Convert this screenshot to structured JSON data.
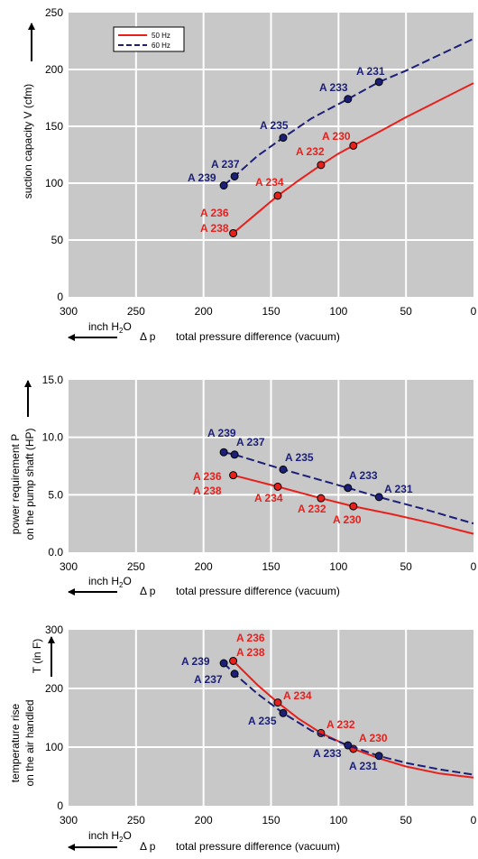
{
  "colors": {
    "plot_bg": "#c8c8c8",
    "grid": "#ffffff",
    "hz50": "#e8201c",
    "hz60": "#1b1f78"
  },
  "xaxis": {
    "ticks": [
      "300",
      "250",
      "200",
      "150",
      "100",
      "50",
      "0"
    ],
    "unit_text": "inch H",
    "unit_sub": "2",
    "unit_tail": "O",
    "delta_text": "Δ p",
    "label": "total pressure difference (vacuum)"
  },
  "chart_data": [
    {
      "type": "line",
      "ylabel_lines": [
        "suction capacity V (cfm)"
      ],
      "yticks": [
        "0",
        "50",
        "100",
        "150",
        "200",
        "250"
      ],
      "xlim": [
        300,
        0
      ],
      "ylim": [
        0,
        250
      ],
      "grid": true,
      "legend_position": "top-left",
      "series": [
        {
          "name": "50 Hz",
          "style": "solid",
          "curve": [
            [
              178,
              56
            ],
            [
              160,
              74
            ],
            [
              145,
              89
            ],
            [
              130,
              102
            ],
            [
              113,
              116
            ],
            [
              100,
              126
            ],
            [
              89,
              133
            ],
            [
              70,
              145
            ],
            [
              50,
              158
            ],
            [
              25,
              173
            ],
            [
              0,
              188
            ]
          ],
          "points": [
            [
              178,
              56
            ],
            [
              145,
              89
            ],
            [
              113,
              116
            ],
            [
              89,
              133
            ]
          ]
        },
        {
          "name": "60 Hz",
          "style": "dashed",
          "curve": [
            [
              185,
              98
            ],
            [
              177,
              106
            ],
            [
              160,
              124
            ],
            [
              141,
              140
            ],
            [
              120,
              157
            ],
            [
              93,
              174
            ],
            [
              70,
              189
            ],
            [
              50,
              199
            ],
            [
              25,
              213
            ],
            [
              0,
              227
            ]
          ],
          "points": [
            [
              185,
              98
            ],
            [
              177,
              106
            ],
            [
              141,
              140
            ],
            [
              93,
              174
            ],
            [
              70,
              189
            ]
          ]
        }
      ],
      "annotations": [
        {
          "text": "A 231",
          "color": "hz60"
        },
        {
          "text": "A 233",
          "color": "hz60"
        },
        {
          "text": "A 235",
          "color": "hz60"
        },
        {
          "text": "A 237",
          "color": "hz60"
        },
        {
          "text": "A 239",
          "color": "hz60"
        },
        {
          "text": "A 230",
          "color": "hz50"
        },
        {
          "text": "A 232",
          "color": "hz50"
        },
        {
          "text": "A 234",
          "color": "hz50"
        },
        {
          "text": "A 236",
          "color": "hz50"
        },
        {
          "text": "A 238",
          "color": "hz50"
        }
      ]
    },
    {
      "type": "line",
      "ylabel_lines": [
        "power requirement P",
        "on the pump shaft (HP)"
      ],
      "yticks": [
        "0.0",
        "5.0",
        "10.0",
        "15.0"
      ],
      "xlim": [
        300,
        0
      ],
      "ylim": [
        0,
        15
      ],
      "grid": true,
      "series": [
        {
          "name": "50 Hz",
          "style": "solid",
          "curve": [
            [
              178,
              6.7
            ],
            [
              145,
              5.7
            ],
            [
              113,
              4.7
            ],
            [
              89,
              4.0
            ],
            [
              60,
              3.3
            ],
            [
              30,
              2.5
            ],
            [
              0,
              1.6
            ]
          ],
          "points": [
            [
              178,
              6.7
            ],
            [
              145,
              5.7
            ],
            [
              113,
              4.7
            ],
            [
              89,
              4.0
            ]
          ]
        },
        {
          "name": "60 Hz",
          "style": "dashed",
          "curve": [
            [
              185,
              8.7
            ],
            [
              177,
              8.5
            ],
            [
              141,
              7.2
            ],
            [
              93,
              5.6
            ],
            [
              70,
              4.8
            ],
            [
              35,
              3.7
            ],
            [
              0,
              2.5
            ]
          ],
          "points": [
            [
              185,
              8.7
            ],
            [
              177,
              8.5
            ],
            [
              141,
              7.2
            ],
            [
              93,
              5.6
            ],
            [
              70,
              4.8
            ]
          ]
        }
      ],
      "annotations": [
        {
          "text": "A 239",
          "color": "hz60"
        },
        {
          "text": "A 237",
          "color": "hz60"
        },
        {
          "text": "A 235",
          "color": "hz60"
        },
        {
          "text": "A 233",
          "color": "hz60"
        },
        {
          "text": "A 231",
          "color": "hz60"
        },
        {
          "text": "A 236",
          "color": "hz50"
        },
        {
          "text": "A 238",
          "color": "hz50"
        },
        {
          "text": "A 234",
          "color": "hz50"
        },
        {
          "text": "A 232",
          "color": "hz50"
        },
        {
          "text": "A 230",
          "color": "hz50"
        }
      ]
    },
    {
      "type": "line",
      "ylabel_lines": [
        "temperature rise",
        "on the air handled"
      ],
      "ylabel_side": "T    (in F)",
      "yticks": [
        "0",
        "100",
        "200",
        "300"
      ],
      "xlim": [
        300,
        0
      ],
      "ylim": [
        0,
        300
      ],
      "grid": true,
      "series": [
        {
          "name": "50 Hz",
          "style": "solid",
          "curve": [
            [
              178,
              247
            ],
            [
              160,
              206
            ],
            [
              145,
              176
            ],
            [
              130,
              149
            ],
            [
              113,
              124
            ],
            [
              100,
              110
            ],
            [
              89,
              97
            ],
            [
              70,
              81
            ],
            [
              50,
              67
            ],
            [
              25,
              55
            ],
            [
              0,
              48
            ]
          ],
          "points": [
            [
              178,
              247
            ],
            [
              145,
              176
            ],
            [
              113,
              124
            ],
            [
              89,
              97
            ]
          ]
        },
        {
          "name": "60 Hz",
          "style": "dashed",
          "curve": [
            [
              185,
              243
            ],
            [
              177,
              225
            ],
            [
              160,
              191
            ],
            [
              141,
              158
            ],
            [
              120,
              128
            ],
            [
              93,
              103
            ],
            [
              70,
              85
            ],
            [
              50,
              73
            ],
            [
              25,
              62
            ],
            [
              0,
              53
            ]
          ],
          "points": [
            [
              185,
              243
            ],
            [
              177,
              225
            ],
            [
              141,
              158
            ],
            [
              93,
              103
            ],
            [
              70,
              85
            ]
          ]
        }
      ],
      "annotations": [
        {
          "text": "A 239",
          "color": "hz60"
        },
        {
          "text": "A 237",
          "color": "hz60"
        },
        {
          "text": "A 235",
          "color": "hz60"
        },
        {
          "text": "A 233",
          "color": "hz60"
        },
        {
          "text": "A 231",
          "color": "hz60"
        },
        {
          "text": "A 236",
          "color": "hz50"
        },
        {
          "text": "A 238",
          "color": "hz50"
        },
        {
          "text": "A 234",
          "color": "hz50"
        },
        {
          "text": "A 232",
          "color": "hz50"
        },
        {
          "text": "A 230",
          "color": "hz50"
        }
      ]
    }
  ]
}
